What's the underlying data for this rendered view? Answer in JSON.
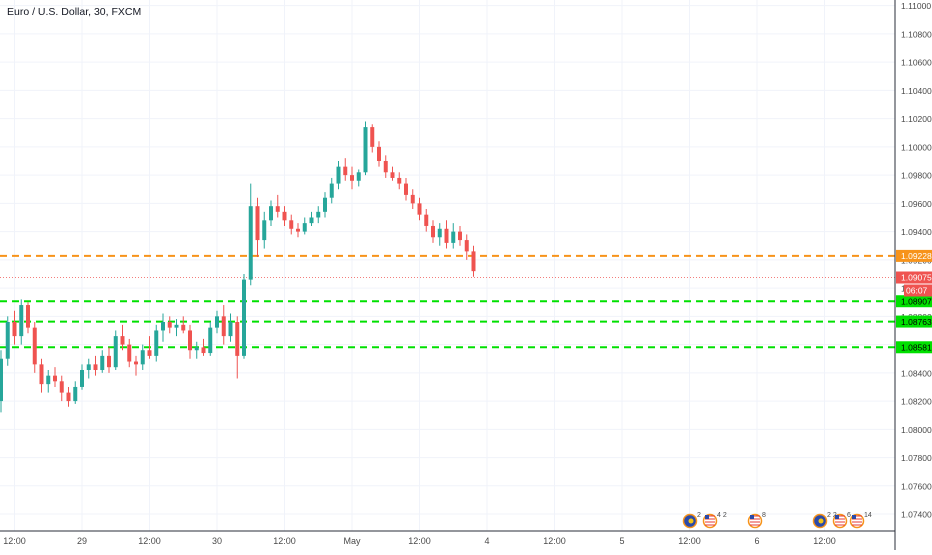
{
  "title": "Euro / U.S. Dollar, 30, FXCM",
  "countdown": "06:07",
  "chart_data": {
    "type": "candlestick",
    "title": "Euro / U.S. Dollar, 30, FXCM",
    "symbol": "EUR/USD",
    "interval": "30",
    "source": "FXCM",
    "ylim": [
      1.0728,
      1.1104
    ],
    "y_ticks": [
      "1.11000",
      "1.10800",
      "1.10600",
      "1.10400",
      "1.10200",
      "1.10000",
      "1.09800",
      "1.09600",
      "1.09400",
      "1.09200",
      "1.09000",
      "1.08800",
      "1.08600",
      "1.08400",
      "1.08200",
      "1.08000",
      "1.07800",
      "1.07600",
      "1.07400"
    ],
    "x_ticks": [
      {
        "label": "12:00",
        "i": 2
      },
      {
        "label": "29",
        "i": 12
      },
      {
        "label": "12:00",
        "i": 22
      },
      {
        "label": "30",
        "i": 32
      },
      {
        "label": "12:00",
        "i": 42
      },
      {
        "label": "May",
        "i": 52
      },
      {
        "label": "12:00",
        "i": 62
      },
      {
        "label": "4",
        "i": 72
      },
      {
        "label": "12:00",
        "i": 82
      },
      {
        "label": "5",
        "i": 92
      },
      {
        "label": "12:00",
        "i": 102
      },
      {
        "label": "6",
        "i": 112
      },
      {
        "label": "12:00",
        "i": 122
      }
    ],
    "current_price": "1.09075",
    "price_labels": [
      {
        "label": "1.09228",
        "value": 1.09228,
        "color": "#f7931a",
        "style": "dashed"
      },
      {
        "label": "1.09075",
        "value": 1.09075,
        "color": "#ef5350",
        "style": "dotted"
      },
      {
        "label": "1.08907",
        "value": 1.08907,
        "color": "#00e000",
        "style": "dashed"
      },
      {
        "label": "1.08763",
        "value": 1.08763,
        "color": "#00e000",
        "style": "dashed"
      },
      {
        "label": "1.08581",
        "value": 1.08581,
        "color": "#00e000",
        "style": "dashed"
      }
    ],
    "colors": {
      "up": "#26a69a",
      "down": "#ef5350"
    },
    "ohlc": [
      [
        1.082,
        1.0856,
        1.0812,
        1.085
      ],
      [
        1.085,
        1.088,
        1.0845,
        1.0876
      ],
      [
        1.0876,
        1.0884,
        1.086,
        1.0866
      ],
      [
        1.0866,
        1.0892,
        1.086,
        1.0888
      ],
      [
        1.0888,
        1.089,
        1.0868,
        1.0872
      ],
      [
        1.0872,
        1.0876,
        1.084,
        1.0846
      ],
      [
        1.0846,
        1.085,
        1.0826,
        1.0832
      ],
      [
        1.0832,
        1.0842,
        1.0826,
        1.0838
      ],
      [
        1.0838,
        1.0844,
        1.083,
        1.0834
      ],
      [
        1.0834,
        1.0838,
        1.082,
        1.0826
      ],
      [
        1.0826,
        1.083,
        1.0816,
        1.082
      ],
      [
        1.082,
        1.0834,
        1.0818,
        1.083
      ],
      [
        1.083,
        1.0846,
        1.0828,
        1.0842
      ],
      [
        1.0842,
        1.085,
        1.0836,
        1.0846
      ],
      [
        1.0846,
        1.0852,
        1.0838,
        1.0842
      ],
      [
        1.0842,
        1.0856,
        1.084,
        1.0852
      ],
      [
        1.0852,
        1.0858,
        1.084,
        1.0844
      ],
      [
        1.0844,
        1.087,
        1.0842,
        1.0866
      ],
      [
        1.0866,
        1.0874,
        1.0856,
        1.086
      ],
      [
        1.086,
        1.0864,
        1.0844,
        1.0848
      ],
      [
        1.0848,
        1.0852,
        1.0838,
        1.0846
      ],
      [
        1.0846,
        1.086,
        1.0842,
        1.0856
      ],
      [
        1.0856,
        1.0866,
        1.085,
        1.0852
      ],
      [
        1.0852,
        1.0874,
        1.0848,
        1.087
      ],
      [
        1.087,
        1.0882,
        1.0862,
        1.0876
      ],
      [
        1.0876,
        1.088,
        1.0868,
        1.0872
      ],
      [
        1.0872,
        1.0878,
        1.0866,
        1.0874
      ],
      [
        1.0874,
        1.088,
        1.0868,
        1.087
      ],
      [
        1.087,
        1.0874,
        1.085,
        1.0856
      ],
      [
        1.0856,
        1.0862,
        1.085,
        1.0858
      ],
      [
        1.0858,
        1.0864,
        1.0852,
        1.0854
      ],
      [
        1.0854,
        1.0876,
        1.0852,
        1.0872
      ],
      [
        1.0872,
        1.0884,
        1.0868,
        1.088
      ],
      [
        1.088,
        1.0888,
        1.086,
        1.0866
      ],
      [
        1.0866,
        1.0882,
        1.0862,
        1.0876
      ],
      [
        1.0876,
        1.088,
        1.0836,
        1.0852
      ],
      [
        1.0852,
        1.091,
        1.085,
        1.0906
      ],
      [
        1.0906,
        1.0974,
        1.0902,
        1.0958
      ],
      [
        1.0958,
        1.0964,
        1.0922,
        1.0934
      ],
      [
        1.0934,
        1.0954,
        1.0928,
        1.0948
      ],
      [
        1.0948,
        1.0962,
        1.0944,
        1.0958
      ],
      [
        1.0958,
        1.0966,
        1.095,
        1.0954
      ],
      [
        1.0954,
        1.0958,
        1.0944,
        1.0948
      ],
      [
        1.0948,
        1.0952,
        1.0938,
        1.0942
      ],
      [
        1.0942,
        1.0946,
        1.0936,
        1.094
      ],
      [
        1.094,
        1.095,
        1.0938,
        1.0946
      ],
      [
        1.0946,
        1.0954,
        1.0944,
        1.095
      ],
      [
        1.095,
        1.0958,
        1.0946,
        1.0954
      ],
      [
        1.0954,
        1.0968,
        1.095,
        1.0964
      ],
      [
        1.0964,
        1.0978,
        1.096,
        1.0974
      ],
      [
        1.0974,
        1.099,
        1.097,
        1.0986
      ],
      [
        1.0986,
        1.0992,
        1.0976,
        1.098
      ],
      [
        1.098,
        1.0986,
        1.097,
        1.0976
      ],
      [
        1.0976,
        1.0984,
        1.0972,
        1.0982
      ],
      [
        1.0982,
        1.1018,
        1.098,
        1.1014
      ],
      [
        1.1014,
        1.1016,
        1.0996,
        1.1
      ],
      [
        1.1,
        1.1004,
        1.0986,
        1.099
      ],
      [
        1.099,
        1.0994,
        1.0978,
        1.0982
      ],
      [
        1.0982,
        1.0986,
        1.0976,
        1.0978
      ],
      [
        1.0978,
        1.0982,
        1.097,
        1.0974
      ],
      [
        1.0974,
        1.0978,
        1.0962,
        1.0966
      ],
      [
        1.0966,
        1.097,
        1.0956,
        1.096
      ],
      [
        1.096,
        1.0964,
        1.0948,
        1.0952
      ],
      [
        1.0952,
        1.0956,
        1.094,
        1.0944
      ],
      [
        1.0944,
        1.0948,
        1.0932,
        1.0936
      ],
      [
        1.0936,
        1.0946,
        1.093,
        1.0942
      ],
      [
        1.0942,
        1.0948,
        1.0928,
        1.0932
      ],
      [
        1.0932,
        1.0946,
        1.0928,
        1.094
      ],
      [
        1.094,
        1.0944,
        1.093,
        1.0934
      ],
      [
        1.0934,
        1.0938,
        1.092,
        1.0926
      ],
      [
        1.0926,
        1.093,
        1.0908,
        1.0912
      ]
    ]
  },
  "events": [
    {
      "label": "2",
      "flags": "eu"
    },
    {
      "label": "4 2",
      "flags": "us"
    },
    {
      "label": "8",
      "flags": "us"
    },
    {
      "label": "2 2",
      "flags": "eu"
    },
    {
      "label": "6",
      "flags": "us"
    },
    {
      "label": "14",
      "flags": "us"
    }
  ]
}
